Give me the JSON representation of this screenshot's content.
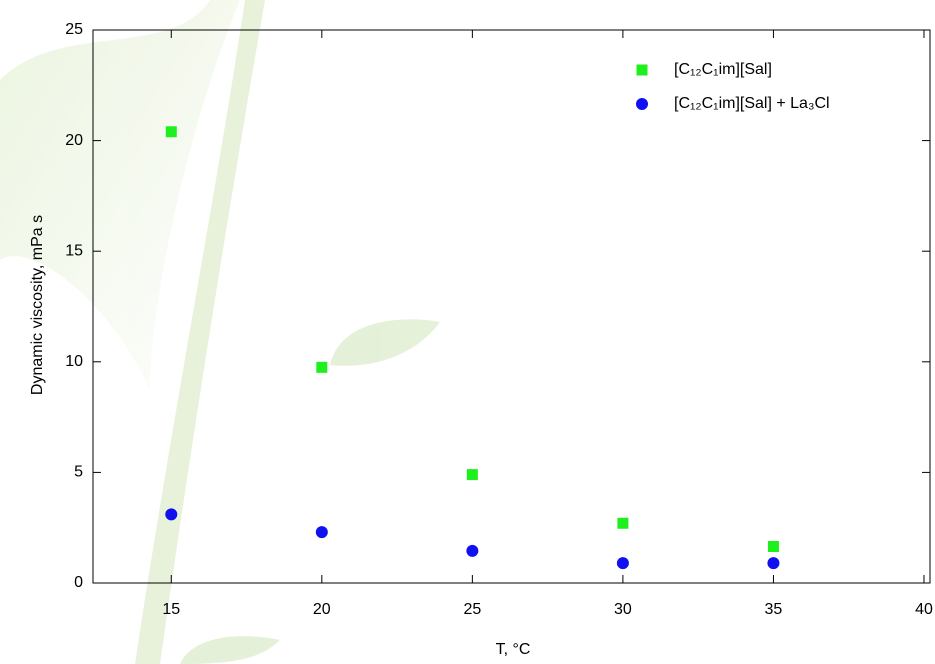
{
  "chart_data": {
    "type": "scatter",
    "xlabel": "T, °C",
    "ylabel": "Dynamic viscosity, mPa s",
    "series": [
      {
        "name": "[C₁₂C₁im][Sal]",
        "color": "#1ef01e",
        "marker": "square",
        "x": [
          15,
          20,
          25,
          30,
          35
        ],
        "values": [
          20.4,
          9.75,
          4.9,
          2.7,
          1.65
        ]
      },
      {
        "name": "[C₁₂C₁im][Sal] + La₃Cl",
        "color": "#1010f0",
        "marker": "circle",
        "x": [
          15,
          20,
          25,
          30,
          35
        ],
        "values": [
          3.1,
          2.3,
          1.45,
          0.9,
          0.9
        ]
      }
    ],
    "xlim": [
      12.4,
      40.2
    ],
    "xticks": [
      15,
      20,
      25,
      30,
      35,
      40
    ],
    "ylim": [
      0,
      25
    ],
    "yticks": [
      0,
      5,
      10,
      15,
      20,
      25
    ],
    "legend": "upper right",
    "grid": false
  }
}
